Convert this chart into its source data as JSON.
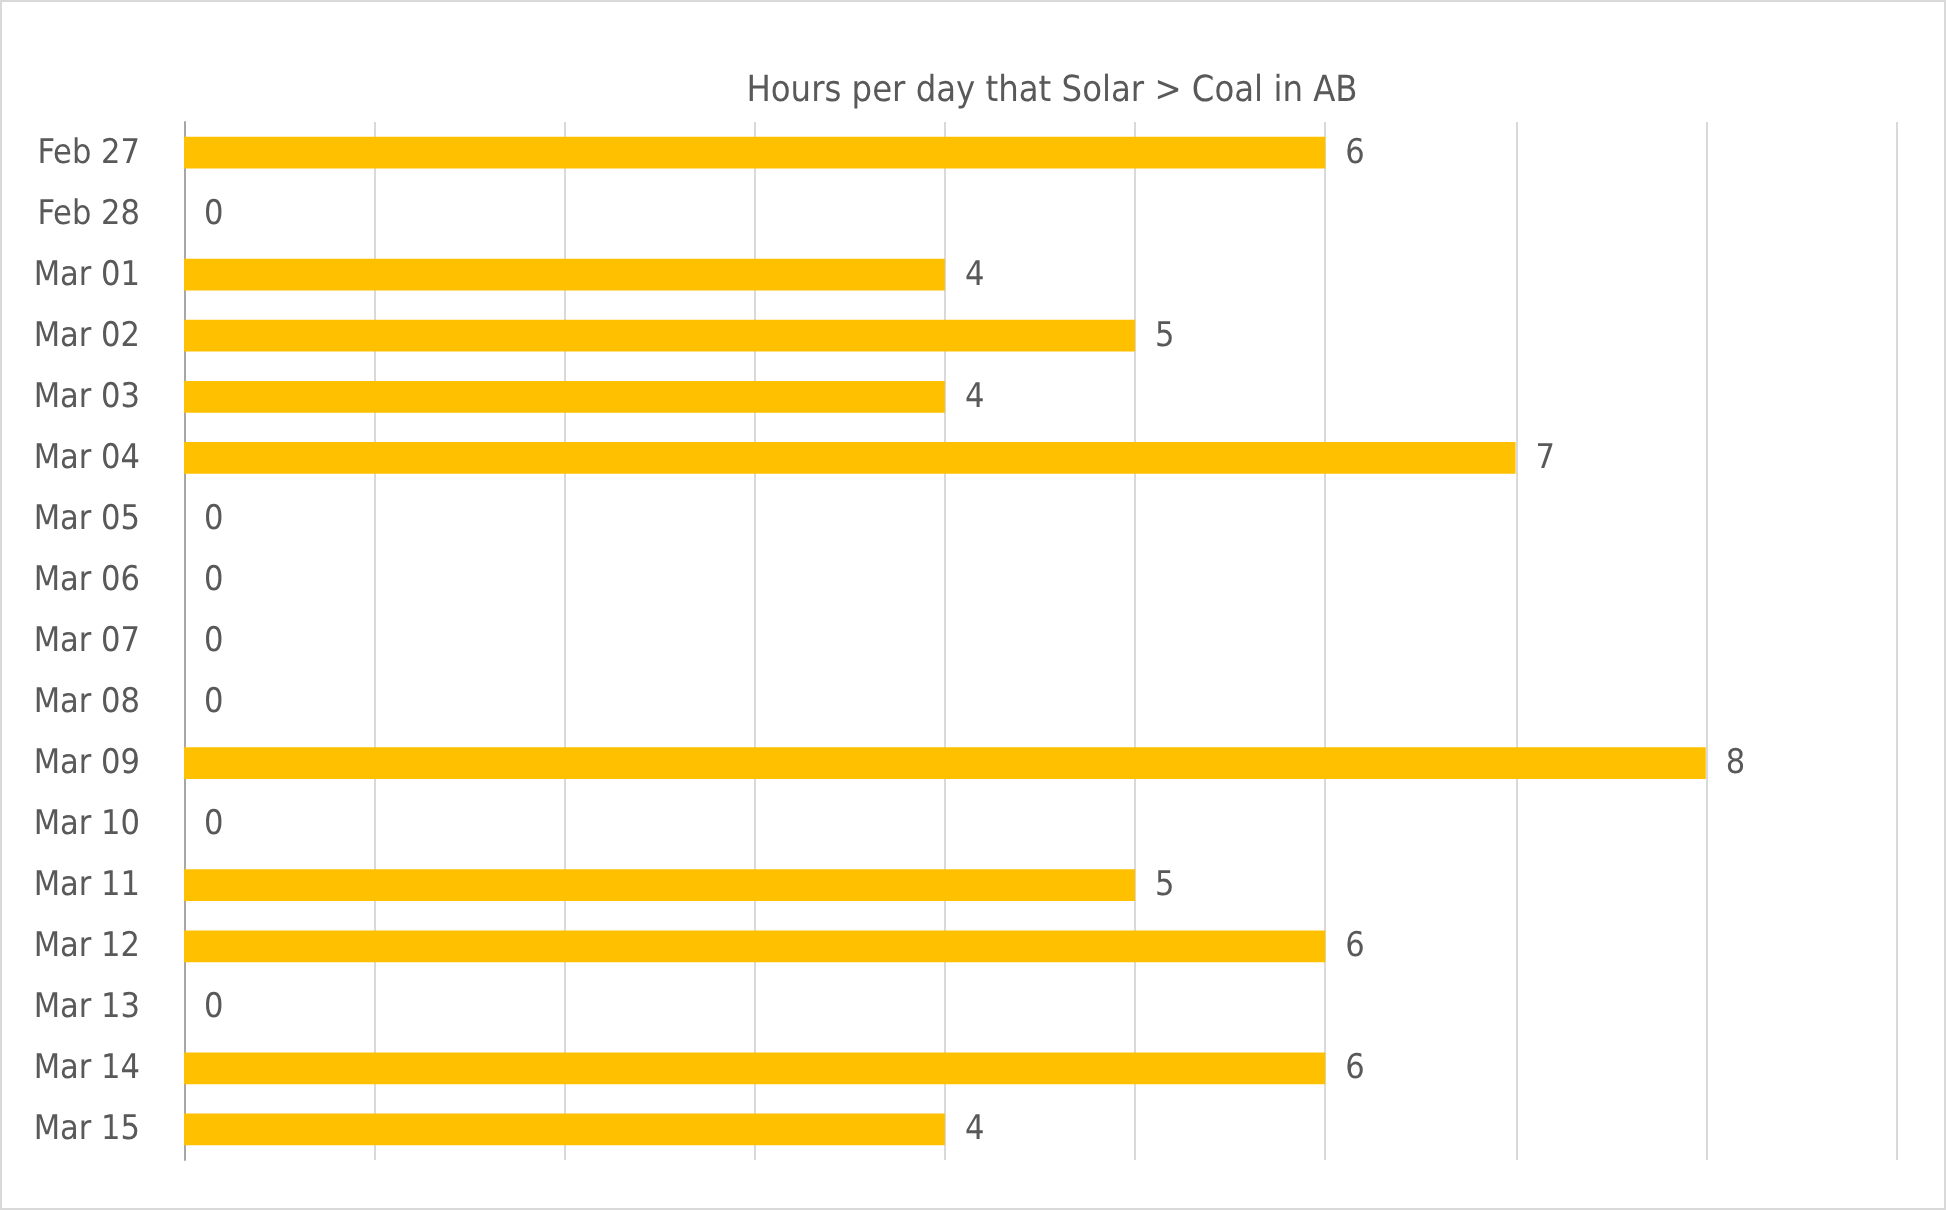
{
  "chart_data": {
    "type": "bar",
    "orientation": "horizontal",
    "title": "Hours per day that Solar > Coal in AB",
    "categories": [
      "Feb 27",
      "Feb 28",
      "Mar 01",
      "Mar 02",
      "Mar 03",
      "Mar 04",
      "Mar 05",
      "Mar 06",
      "Mar 07",
      "Mar 08",
      "Mar 09",
      "Mar 10",
      "Mar 11",
      "Mar 12",
      "Mar 13",
      "Mar 14",
      "Mar 15"
    ],
    "values": [
      6,
      0,
      4,
      5,
      4,
      7,
      0,
      0,
      0,
      0,
      8,
      0,
      5,
      6,
      0,
      6,
      4
    ],
    "color": "#ffc000",
    "xlim": [
      0,
      9
    ],
    "xticks": [
      {
        "value": 0,
        "label": null
      },
      {
        "value": 1,
        "label": null
      },
      {
        "value": 2,
        "label": null
      },
      {
        "value": 3,
        "label": null
      },
      {
        "value": 4,
        "label": null
      },
      {
        "value": 5,
        "label": null
      },
      {
        "value": 6,
        "label": null
      },
      {
        "value": 7,
        "label": null
      },
      {
        "value": 8,
        "label": null
      },
      {
        "value": 9,
        "label": null
      }
    ],
    "grid": "x",
    "tick_labels": "y",
    "data_labels": true
  }
}
